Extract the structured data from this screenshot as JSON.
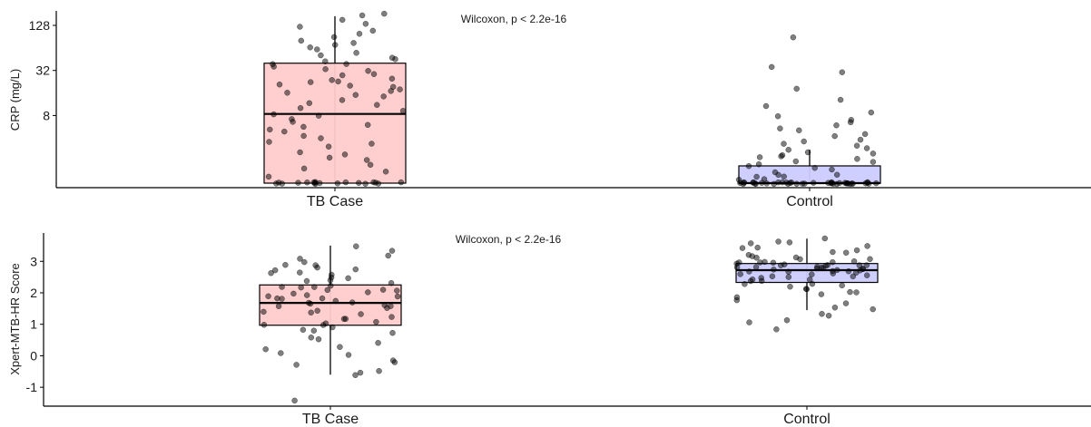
{
  "chart_data": [
    {
      "type": "box",
      "ylabel": "CRP (mg/L)",
      "yscale": "log2",
      "ylim": [
        0.87,
        200
      ],
      "yticks": [
        8,
        32,
        128
      ],
      "ytick_labels": [
        "8",
        "32",
        "128"
      ],
      "annotation": "Wilcoxon, p < 2.2e-16",
      "categories": [
        "TB Case",
        "Control"
      ],
      "boxes": [
        {
          "category": "TB Case",
          "fill": "#ffcccc",
          "whisker_low": 1.0,
          "q1": 1.0,
          "median": 8.4,
          "q3": 40,
          "whisker_high": 170
        },
        {
          "category": "Control",
          "fill": "#ccccff",
          "whisker_low": 1.0,
          "q1": 1.0,
          "median": 1.0,
          "q3": 1.7,
          "whisker_high": 2.8
        }
      ],
      "points_y": [
        [
          1,
          1,
          1,
          1,
          1,
          1,
          1,
          1,
          1,
          1,
          1,
          1,
          1,
          1,
          1,
          1,
          1,
          1.05,
          1.2,
          1.4,
          1.6,
          1.8,
          2.0,
          2.2,
          2.4,
          2.6,
          3.0,
          3.3,
          3.6,
          4.0,
          4.4,
          4.8,
          5.2,
          5.6,
          6.0,
          6.6,
          7.2,
          7.8,
          8.4,
          9.0,
          10,
          11,
          12,
          13,
          14,
          15,
          16,
          17,
          18,
          19,
          20,
          21,
          22,
          23,
          24,
          25,
          27,
          29,
          31,
          33,
          35,
          38,
          40,
          42,
          45,
          48,
          50,
          55,
          60,
          65,
          70,
          75,
          80,
          90,
          100,
          110,
          120,
          135,
          150,
          170,
          180
        ],
        [
          1,
          1,
          1,
          1,
          1,
          1,
          1,
          1,
          1,
          1,
          1,
          1,
          1,
          1,
          1,
          1,
          1,
          1,
          1,
          1,
          1,
          1,
          1,
          1,
          1,
          1,
          1,
          1,
          1,
          1,
          1,
          1,
          1,
          1,
          1,
          1,
          1,
          1,
          1,
          1,
          1.1,
          1.1,
          1.2,
          1.2,
          1.3,
          1.3,
          1.4,
          1.5,
          1.6,
          1.7,
          1.8,
          1.9,
          2.0,
          2.1,
          2.2,
          2.3,
          2.4,
          2.5,
          2.6,
          2.8,
          3.0,
          3.2,
          3.4,
          3.6,
          3.9,
          4.2,
          4.5,
          5.0,
          5.5,
          6.0,
          6.5,
          7.0,
          8.0,
          9.0,
          11,
          13,
          18,
          30,
          35,
          90
        ]
      ]
    },
    {
      "type": "box",
      "ylabel": "Xpert-MTB-HR Score",
      "ylim": [
        -1.6,
        3.9
      ],
      "yticks": [
        -1,
        0,
        1,
        2,
        3
      ],
      "ytick_labels": [
        "-1",
        "0",
        "1",
        "2",
        "3"
      ],
      "annotation": "Wilcoxon, p < 2.2e-16",
      "categories": [
        "TB Case",
        "Control"
      ],
      "boxes": [
        {
          "category": "TB Case",
          "fill": "#ffcccc",
          "whisker_low": -0.6,
          "q1": 0.97,
          "median": 1.68,
          "q3": 2.25,
          "whisker_high": 3.5
        },
        {
          "category": "Control",
          "fill": "#ccccff",
          "whisker_low": 1.45,
          "q1": 2.33,
          "median": 2.72,
          "q3": 2.93,
          "whisker_high": 3.72
        }
      ],
      "points_y": [
        [
          -1.4,
          -0.6,
          -0.55,
          -0.5,
          -0.3,
          -0.2,
          -0.15,
          0,
          0.1,
          0.2,
          0.3,
          0.4,
          0.5,
          0.6,
          0.7,
          0.8,
          0.85,
          0.9,
          0.95,
          1.0,
          1.05,
          1.1,
          1.15,
          1.2,
          1.25,
          1.3,
          1.35,
          1.4,
          1.45,
          1.5,
          1.55,
          1.6,
          1.6,
          1.65,
          1.7,
          1.7,
          1.75,
          1.8,
          1.8,
          1.85,
          1.9,
          1.9,
          1.95,
          2.0,
          2.0,
          2.05,
          2.1,
          2.1,
          2.15,
          2.2,
          2.2,
          2.25,
          2.3,
          2.35,
          2.4,
          2.45,
          2.5,
          2.55,
          2.6,
          2.65,
          2.7,
          2.75,
          2.8,
          2.85,
          2.9,
          3.0,
          3.1,
          3.2,
          3.35,
          3.5
        ],
        [
          0.85,
          1.05,
          1.15,
          1.25,
          1.35,
          1.45,
          1.55,
          1.65,
          1.75,
          1.85,
          1.95,
          2.0,
          2.05,
          2.1,
          2.15,
          2.2,
          2.25,
          2.3,
          2.3,
          2.35,
          2.4,
          2.4,
          2.45,
          2.45,
          2.5,
          2.5,
          2.55,
          2.55,
          2.6,
          2.6,
          2.6,
          2.65,
          2.65,
          2.65,
          2.7,
          2.7,
          2.7,
          2.7,
          2.75,
          2.75,
          2.75,
          2.75,
          2.8,
          2.8,
          2.8,
          2.8,
          2.85,
          2.85,
          2.85,
          2.85,
          2.9,
          2.9,
          2.9,
          2.9,
          2.95,
          2.95,
          2.95,
          3.0,
          3.0,
          3.0,
          3.05,
          3.05,
          3.1,
          3.1,
          3.15,
          3.2,
          3.25,
          3.3,
          3.35,
          3.4,
          3.45,
          3.5,
          3.55,
          3.6,
          3.65,
          3.72
        ]
      ]
    }
  ]
}
